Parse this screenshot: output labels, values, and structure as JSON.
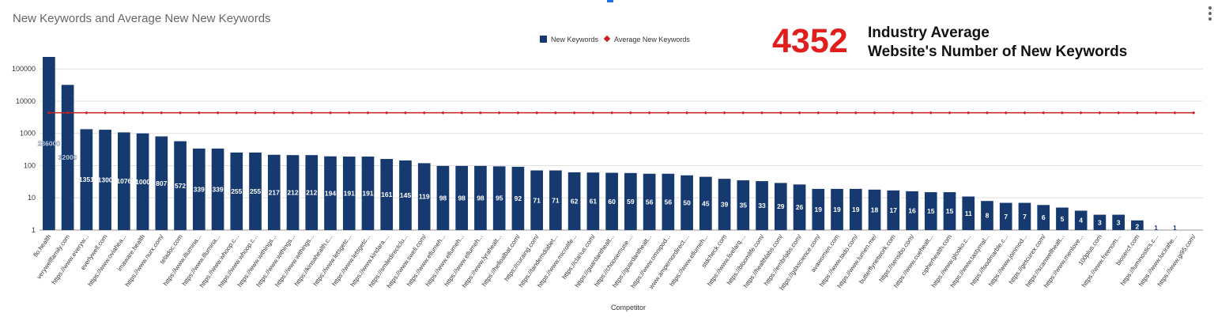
{
  "title": "New Keywords  and Average New New Keywords",
  "overlay": {
    "number": "4352",
    "line1": "Industry Average",
    "line2": "Website's Number of New Keywords"
  },
  "colors": {
    "bar": "#163a70",
    "average_line": "#c62020",
    "grid": "#e0e0e0",
    "overlay_number": "#e01e1e"
  },
  "chart_data": {
    "type": "bar",
    "title": "New Keywords  and Average New New Keywords",
    "xlabel": "Competitor",
    "ylabel": "",
    "yscale": "log",
    "ylim": [
      1,
      236000
    ],
    "yticks": [
      "1",
      "10",
      "100",
      "1000",
      "10000",
      "100000"
    ],
    "grid": true,
    "legend_position": "top-center",
    "categories": [
      "flo.health",
      "verywellfamily.com",
      "https://www.everyw...",
      "everlywell.com",
      "https://www.oviahea...",
      "imaware.health",
      "https://www.nurx.com/",
      "teladoc.com",
      "https://www.illumina...",
      "https://www.illumina...",
      "https://www.whoop.c...",
      "https://www.whoop.c...",
      "https://www.withings...",
      "https://www.withings...",
      "https://www.withings...",
      "https://kinsahealth.c...",
      "https://www.letsgetc...",
      "https://www.letsgetc...",
      "https://www.kindara....",
      "https://smiledirectclu...",
      "https://www.sweli.com/",
      "https://www.ellumeh...",
      "https://www.ellumeh...",
      "https://www.ellumeh...",
      "https://www.lyrahealt...",
      "https://helloalbat.com/",
      "https://curaing.com/",
      "https://tandemdiabet...",
      "https://www.microlife...",
      "https://clarius.com/",
      "https://guardanthealt...",
      "https://choosemuse....",
      "https://guardanthealt...",
      "https://www.omnipod...",
      "www.ampernordirect....",
      "https://www.ellumeh...",
      "stdcheck.com",
      "https://www.livelarq....",
      "https://bloomlife.com/",
      "https://healthlabs.com/",
      "https://embrlabs.com/",
      "https://gdxscience.com/",
      "avawomen.com",
      "https://www.tado.com/",
      "https://www.lumen.me/",
      "butterflynetwork.com",
      "https://sensibo.com/",
      "https://www.cuehealt...",
      "cipherhealth.com",
      "https://www.glooko.c...",
      "https://www.tastymal...",
      "https://foodmarble.c...",
      "https://www.joinmod...",
      "https://getcurex.com/",
      "https://scanwellhealt...",
      "https://www.menlove...",
      "100plus.com",
      "https://www.freenom...",
      "biosercf.com",
      "https://luminostics.c...",
      "https://www.lucirahe...",
      "https://www.gi95.com/"
    ],
    "series": [
      {
        "name": "New Keywords",
        "values": [
          236000,
          32000,
          1351,
          1300,
          1076,
          1000,
          807,
          572,
          339,
          339,
          255,
          255,
          217,
          212,
          212,
          194,
          191,
          191,
          161,
          145,
          119,
          98,
          98,
          98,
          95,
          92,
          71,
          71,
          62,
          61,
          60,
          59,
          56,
          56,
          50,
          45,
          39,
          35,
          33,
          29,
          26,
          19,
          19,
          19,
          18,
          17,
          16,
          15,
          15,
          11,
          8,
          7,
          7,
          6,
          5,
          4,
          3,
          3,
          2,
          1,
          1,
          0
        ]
      },
      {
        "name": "Average New Keywords",
        "value": 4352
      }
    ]
  }
}
